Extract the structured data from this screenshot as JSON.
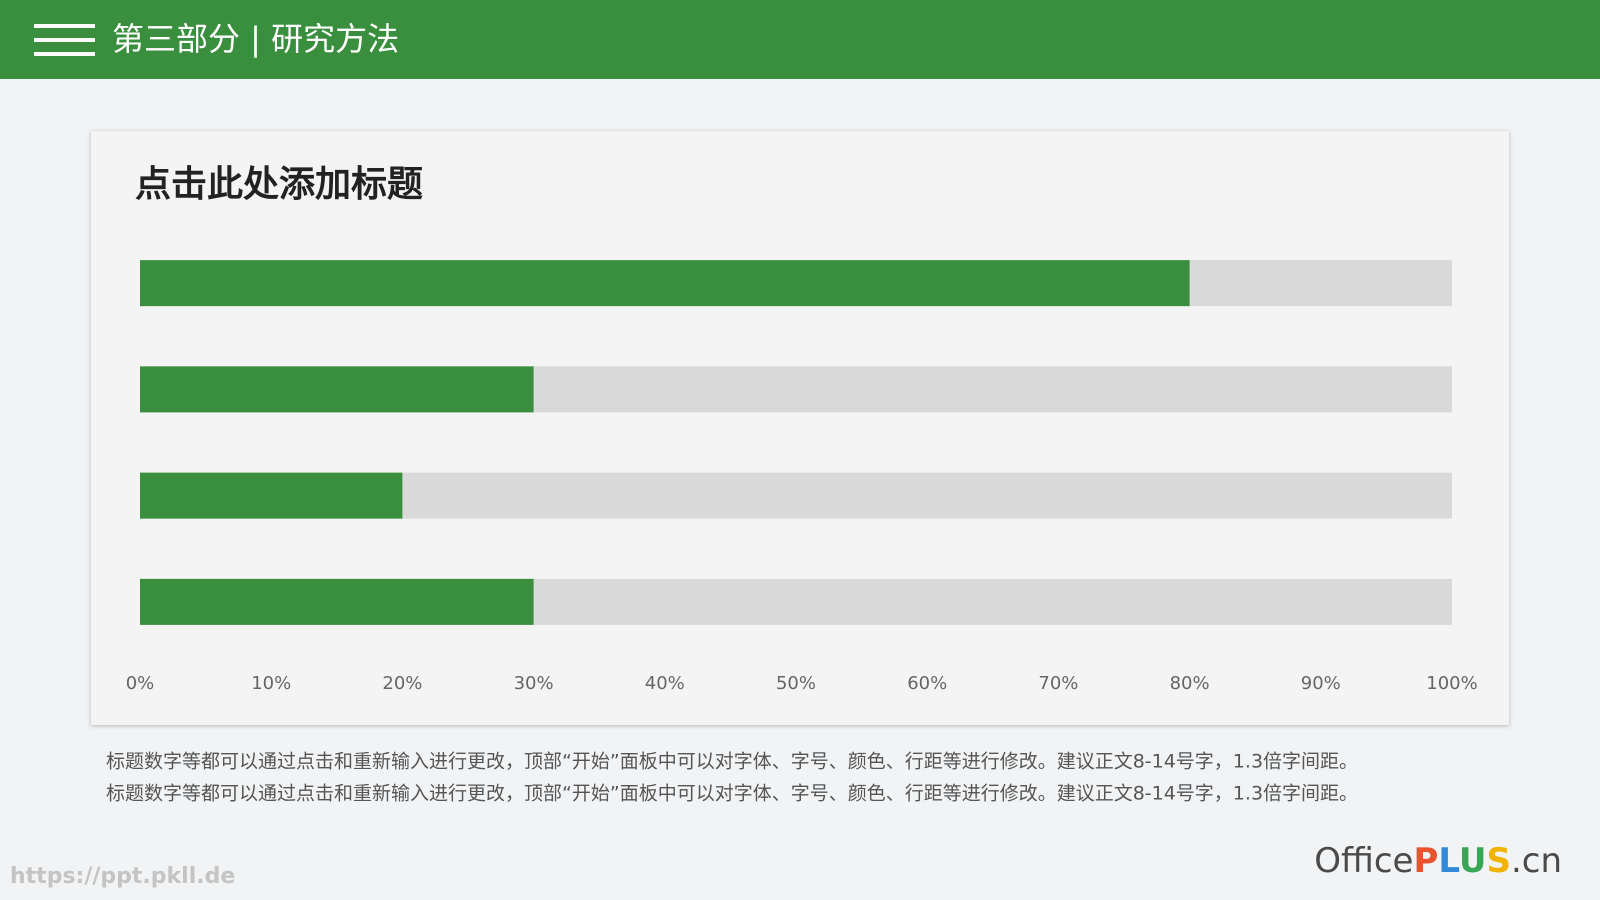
{
  "header": {
    "title": "第三部分 | 研究方法"
  },
  "chart_data": {
    "type": "bar",
    "orientation": "horizontal",
    "title": "点击此处添加标题",
    "categories": [
      null,
      null,
      null,
      null
    ],
    "values": [
      80,
      30,
      20,
      30
    ],
    "color": "#3a8f3f",
    "track_color": "#d9d9d9",
    "xlim": [
      0,
      100
    ],
    "xticks": [
      {
        "value": 0,
        "label": "0%"
      },
      {
        "value": 10,
        "label": "10%"
      },
      {
        "value": 20,
        "label": "20%"
      },
      {
        "value": 30,
        "label": "30%"
      },
      {
        "value": 40,
        "label": "40%"
      },
      {
        "value": 50,
        "label": "50%"
      },
      {
        "value": 60,
        "label": "60%"
      },
      {
        "value": 70,
        "label": "70%"
      },
      {
        "value": 80,
        "label": "80%"
      },
      {
        "value": 90,
        "label": "90%"
      },
      {
        "value": 100,
        "label": "100%"
      }
    ],
    "grid": false
  },
  "body": {
    "lines": [
      "标题数字等都可以通过点击和重新输入进行更改，顶部“开始”面板中可以对字体、字号、颜色、行距等进行修改。建议正文8-14号字，1.3倍字间距。",
      "标题数字等都可以通过点击和重新输入进行更改，顶部“开始”面板中可以对字体、字号、颜色、行距等进行修改。建议正文8-14号字，1.3倍字间距。"
    ]
  },
  "watermark": "https://ppt.pkll.de",
  "logo": {
    "parts": [
      {
        "text": "Office",
        "color": "#4a4a4a"
      },
      {
        "text": "P",
        "color": "#e8542f"
      },
      {
        "text": "L",
        "color": "#2f8bd8"
      },
      {
        "text": "U",
        "color": "#3aa655"
      },
      {
        "text": "S",
        "color": "#f2b300"
      },
      {
        "text": ".cn",
        "color": "#4a4a4a"
      }
    ]
  }
}
